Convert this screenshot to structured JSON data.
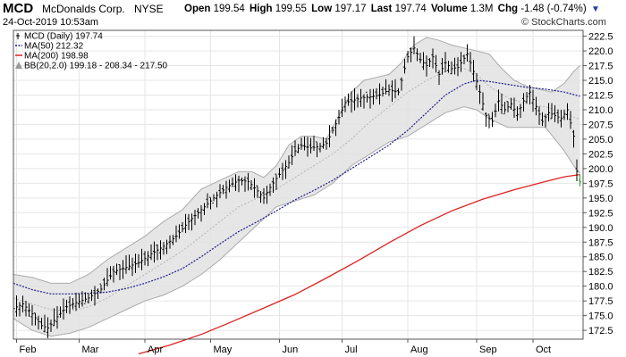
{
  "header": {
    "ticker": "MCD",
    "company": "McDonalds Corp.",
    "exchange": "NYSE",
    "datetime": "24-Oct-2019 10:53am",
    "watermark": "© StockCharts.com",
    "quote": {
      "open_label": "Open",
      "open": "199.54",
      "high_label": "High",
      "high": "199.55",
      "low_label": "Low",
      "low": "197.17",
      "last_label": "Last",
      "last": "197.74",
      "volume_label": "Volume",
      "volume": "1.3M",
      "chg_label": "Chg",
      "chg": "-1.48 (-0.74%)",
      "arrow": "▼"
    }
  },
  "legend": [
    {
      "text": "MCD (Daily) 197.74",
      "color": "#000000",
      "kind": "candle"
    },
    {
      "text": "MA(50) 212.32",
      "color": "#1a1a8c",
      "kind": "dotted"
    },
    {
      "text": "MA(200) 198.98",
      "color": "#e02020",
      "kind": "solid"
    },
    {
      "text": "BB(20,2.0) 199.18 - 208.34 - 217.50",
      "color": "#999999",
      "kind": "band"
    }
  ],
  "chart_data": {
    "type": "line",
    "title": "MCD (Daily)",
    "ylim": [
      171,
      223.5
    ],
    "xlim": [
      0,
      182
    ],
    "y_ticks": [
      "172.5",
      "175.0",
      "177.5",
      "180.0",
      "182.5",
      "185.0",
      "187.5",
      "190.0",
      "192.5",
      "195.0",
      "197.5",
      "200.0",
      "202.5",
      "205.0",
      "207.5",
      "210.0",
      "212.5",
      "215.0",
      "217.5",
      "220.0",
      "222.5"
    ],
    "x_ticks": [
      {
        "label": "Feb",
        "x": 1
      },
      {
        "label": "Mar",
        "x": 21
      },
      {
        "label": "Apr",
        "x": 42
      },
      {
        "label": "May",
        "x": 63
      },
      {
        "label": "Jun",
        "x": 85
      },
      {
        "label": "Jul",
        "x": 105
      },
      {
        "label": "Aug",
        "x": 126
      },
      {
        "label": "Sep",
        "x": 148
      },
      {
        "label": "Oct",
        "x": 166
      }
    ],
    "price_close": [
      [
        0,
        176.2
      ],
      [
        3,
        177.0
      ],
      [
        6,
        175.3
      ],
      [
        9,
        173.3
      ],
      [
        11,
        172.9
      ],
      [
        14,
        174.8
      ],
      [
        17,
        176.5
      ],
      [
        20,
        177.2
      ],
      [
        24,
        178.0
      ],
      [
        28,
        179.5
      ],
      [
        32,
        182.5
      ],
      [
        36,
        183.2
      ],
      [
        40,
        184.0
      ],
      [
        44,
        185.5
      ],
      [
        48,
        186.8
      ],
      [
        52,
        188.5
      ],
      [
        56,
        191.0
      ],
      [
        60,
        193.0
      ],
      [
        64,
        195.0
      ],
      [
        68,
        196.8
      ],
      [
        72,
        198.0
      ],
      [
        75,
        197.8
      ],
      [
        78,
        196.2
      ],
      [
        80,
        195.0
      ],
      [
        82,
        196.8
      ],
      [
        84,
        198.3
      ],
      [
        86,
        199.7
      ],
      [
        88,
        201.0
      ],
      [
        90,
        203.0
      ],
      [
        92,
        203.9
      ],
      [
        95,
        203.5
      ],
      [
        98,
        203.8
      ],
      [
        100,
        204.3
      ],
      [
        102,
        206.5
      ],
      [
        104,
        208.7
      ],
      [
        106,
        211.2
      ],
      [
        108,
        211.5
      ],
      [
        111,
        212.0
      ],
      [
        114,
        212.2
      ],
      [
        117,
        212.5
      ],
      [
        120,
        213.4
      ],
      [
        123,
        213.0
      ],
      [
        126,
        219.0
      ],
      [
        128,
        220.5
      ],
      [
        130,
        218.5
      ],
      [
        132,
        217.5
      ],
      [
        134,
        219.0
      ],
      [
        136,
        216.0
      ],
      [
        138,
        218.0
      ],
      [
        140,
        217.0
      ],
      [
        142,
        217.2
      ],
      [
        145,
        219.5
      ],
      [
        147,
        216.5
      ],
      [
        149,
        213.0
      ],
      [
        151,
        209.0
      ],
      [
        153,
        208.0
      ],
      [
        155,
        211.5
      ],
      [
        157,
        210.0
      ],
      [
        159,
        211.0
      ],
      [
        161,
        209.2
      ],
      [
        163,
        211.5
      ],
      [
        165,
        213.0
      ],
      [
        167,
        210.5
      ],
      [
        169,
        208.0
      ],
      [
        171,
        209.5
      ],
      [
        173,
        209.0
      ],
      [
        175,
        208.5
      ],
      [
        177,
        210.0
      ],
      [
        179,
        205.5
      ],
      [
        180,
        199.5
      ],
      [
        181,
        197.74
      ]
    ],
    "series": [
      {
        "name": "MA(50)",
        "values": [
          [
            0,
            180.5
          ],
          [
            6,
            179.4
          ],
          [
            12,
            178.7
          ],
          [
            18,
            178.7
          ],
          [
            24,
            178.8
          ],
          [
            30,
            179.0
          ],
          [
            36,
            179.6
          ],
          [
            42,
            180.5
          ],
          [
            48,
            181.6
          ],
          [
            54,
            183.0
          ],
          [
            60,
            185.0
          ],
          [
            66,
            187.2
          ],
          [
            72,
            189.3
          ],
          [
            78,
            191.0
          ],
          [
            84,
            192.8
          ],
          [
            90,
            194.7
          ],
          [
            96,
            196.3
          ],
          [
            102,
            198.0
          ],
          [
            108,
            200.0
          ],
          [
            114,
            202.0
          ],
          [
            120,
            204.0
          ],
          [
            126,
            206.5
          ],
          [
            132,
            209.5
          ],
          [
            138,
            212.5
          ],
          [
            144,
            214.4
          ],
          [
            148,
            215.0
          ],
          [
            152,
            214.8
          ],
          [
            158,
            214.3
          ],
          [
            164,
            213.8
          ],
          [
            170,
            213.5
          ],
          [
            176,
            213.0
          ],
          [
            181,
            212.3
          ]
        ]
      },
      {
        "name": "MA(200)",
        "values": [
          [
            40,
            168.5
          ],
          [
            50,
            170.0
          ],
          [
            60,
            171.8
          ],
          [
            70,
            174.0
          ],
          [
            80,
            176.3
          ],
          [
            90,
            178.6
          ],
          [
            100,
            181.4
          ],
          [
            110,
            184.3
          ],
          [
            120,
            187.4
          ],
          [
            130,
            190.3
          ],
          [
            140,
            192.8
          ],
          [
            150,
            194.8
          ],
          [
            160,
            196.4
          ],
          [
            170,
            197.8
          ],
          [
            176,
            198.6
          ],
          [
            181,
            198.98
          ]
        ]
      },
      {
        "name": "BB(20,2.0)",
        "upper": [
          [
            0,
            182.0
          ],
          [
            6,
            181.5
          ],
          [
            12,
            180.5
          ],
          [
            18,
            180.5
          ],
          [
            24,
            182.0
          ],
          [
            30,
            184.5
          ],
          [
            36,
            186.5
          ],
          [
            42,
            188.5
          ],
          [
            48,
            191.0
          ],
          [
            54,
            193.0
          ],
          [
            60,
            196.5
          ],
          [
            66,
            198.0
          ],
          [
            72,
            199.5
          ],
          [
            76,
            199.5
          ],
          [
            80,
            198.5
          ],
          [
            84,
            200.5
          ],
          [
            88,
            204.0
          ],
          [
            92,
            205.5
          ],
          [
            96,
            205.5
          ],
          [
            100,
            205.0
          ],
          [
            104,
            209.0
          ],
          [
            108,
            213.0
          ],
          [
            112,
            215.0
          ],
          [
            116,
            215.5
          ],
          [
            120,
            216.0
          ],
          [
            124,
            218.0
          ],
          [
            128,
            221.0
          ],
          [
            132,
            222.3
          ],
          [
            136,
            221.8
          ],
          [
            140,
            221.0
          ],
          [
            144,
            220.5
          ],
          [
            148,
            220.0
          ],
          [
            152,
            219.5
          ],
          [
            156,
            217.0
          ],
          [
            160,
            215.0
          ],
          [
            164,
            214.0
          ],
          [
            168,
            213.5
          ],
          [
            172,
            213.0
          ],
          [
            176,
            214.5
          ],
          [
            179,
            216.5
          ],
          [
            181,
            217.5
          ]
        ],
        "middle": [
          [
            0,
            178.0
          ],
          [
            6,
            177.0
          ],
          [
            12,
            176.0
          ],
          [
            18,
            175.8
          ],
          [
            24,
            176.5
          ],
          [
            30,
            178.0
          ],
          [
            36,
            180.0
          ],
          [
            42,
            182.0
          ],
          [
            48,
            184.0
          ],
          [
            54,
            186.0
          ],
          [
            60,
            188.5
          ],
          [
            66,
            191.0
          ],
          [
            72,
            193.5
          ],
          [
            78,
            195.0
          ],
          [
            84,
            196.5
          ],
          [
            90,
            198.5
          ],
          [
            96,
            200.5
          ],
          [
            102,
            202.5
          ],
          [
            108,
            205.0
          ],
          [
            114,
            208.0
          ],
          [
            120,
            210.5
          ],
          [
            126,
            213.0
          ],
          [
            132,
            215.0
          ],
          [
            138,
            216.5
          ],
          [
            144,
            217.0
          ],
          [
            148,
            216.0
          ],
          [
            152,
            214.0
          ],
          [
            158,
            212.0
          ],
          [
            164,
            211.0
          ],
          [
            170,
            210.5
          ],
          [
            176,
            209.5
          ],
          [
            181,
            208.3
          ]
        ],
        "lower": [
          [
            0,
            174.5
          ],
          [
            6,
            172.5
          ],
          [
            12,
            171.5
          ],
          [
            18,
            172.0
          ],
          [
            24,
            173.0
          ],
          [
            30,
            174.5
          ],
          [
            36,
            176.0
          ],
          [
            42,
            177.5
          ],
          [
            48,
            178.5
          ],
          [
            54,
            180.0
          ],
          [
            60,
            182.0
          ],
          [
            66,
            184.5
          ],
          [
            72,
            187.5
          ],
          [
            78,
            190.5
          ],
          [
            84,
            193.5
          ],
          [
            90,
            194.5
          ],
          [
            96,
            195.5
          ],
          [
            102,
            197.5
          ],
          [
            108,
            200.5
          ],
          [
            114,
            202.5
          ],
          [
            120,
            204.5
          ],
          [
            126,
            205.5
          ],
          [
            132,
            207.5
          ],
          [
            138,
            209.5
          ],
          [
            144,
            210.5
          ],
          [
            148,
            210.0
          ],
          [
            152,
            208.5
          ],
          [
            158,
            207.0
          ],
          [
            164,
            207.0
          ],
          [
            170,
            207.0
          ],
          [
            176,
            203.0
          ],
          [
            179,
            200.5
          ],
          [
            181,
            199.2
          ]
        ]
      }
    ],
    "grid": true,
    "legend_position": "top-left",
    "colors": {
      "price": "#000000",
      "ma50": "#1a1a8c",
      "ma200": "#e02020",
      "band_fill": "#e2e2e2",
      "band_edge": "#aaaaaa",
      "last_bar": "#2ca02c"
    }
  }
}
